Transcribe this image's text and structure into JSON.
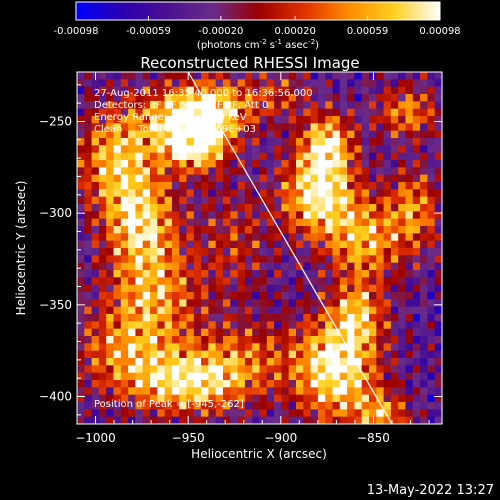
{
  "chart_data": {
    "type": "heatmap",
    "title": "Reconstructed RHESSI Image",
    "xlabel": "Heliocentric X (arcsec)",
    "ylabel": "Heliocentric Y (arcsec)",
    "xlim": [
      -1010,
      -813
    ],
    "ylim": [
      -415,
      -223
    ],
    "x_ticks": [
      -1000,
      -950,
      -900,
      -850
    ],
    "y_ticks": [
      -400,
      -350,
      -300,
      -250
    ],
    "colorbar": {
      "range": [
        -0.00098,
        0.00098
      ],
      "ticks": [
        -0.00098,
        -0.00059,
        -0.0002,
        0.0002,
        0.00059,
        0.00098
      ],
      "tick_labels": [
        "-0.00098",
        "-0.00059",
        "-0.00020",
        "0.00020",
        "0.00059",
        "0.00098"
      ],
      "units_main": "(photons cm",
      "units_exp1": "-2",
      "units_mid": " s",
      "units_exp2": "-1",
      "units_end": " asec",
      "units_exp3": "-2",
      "units_close": ")",
      "colors": [
        "#0000ff",
        "#2a00b0",
        "#4a1090",
        "#6a2c8a",
        "#9a0000",
        "#e03000",
        "#ff8c00",
        "#ffd020",
        "#ffffff"
      ]
    },
    "limb_line": {
      "x": [
        -950,
        -840
      ],
      "y": [
        -223,
        -415
      ]
    },
    "blobs": [
      {
        "x": -950,
        "y": -250,
        "sx": 18,
        "sy": 14,
        "amp": 1.0
      },
      {
        "x": -990,
        "y": -270,
        "sx": 14,
        "sy": 20,
        "amp": 0.7
      },
      {
        "x": -975,
        "y": -305,
        "sx": 14,
        "sy": 20,
        "amp": 0.8
      },
      {
        "x": -945,
        "y": -262,
        "sx": 10,
        "sy": 10,
        "amp": 0.7
      },
      {
        "x": -968,
        "y": -345,
        "sx": 18,
        "sy": 18,
        "amp": 0.6
      },
      {
        "x": -985,
        "y": -375,
        "sx": 20,
        "sy": 16,
        "amp": 0.55
      },
      {
        "x": -950,
        "y": -393,
        "sx": 22,
        "sy": 12,
        "amp": 0.85
      },
      {
        "x": -920,
        "y": -378,
        "sx": 20,
        "sy": 14,
        "amp": 0.45
      },
      {
        "x": -880,
        "y": -290,
        "sx": 14,
        "sy": 16,
        "amp": 0.95
      },
      {
        "x": -875,
        "y": -262,
        "sx": 10,
        "sy": 12,
        "amp": 0.8
      },
      {
        "x": -855,
        "y": -315,
        "sx": 14,
        "sy": 16,
        "amp": 0.7
      },
      {
        "x": -828,
        "y": -298,
        "sx": 10,
        "sy": 16,
        "amp": 0.6
      },
      {
        "x": -832,
        "y": -245,
        "sx": 12,
        "sy": 10,
        "amp": 0.6
      },
      {
        "x": -870,
        "y": -385,
        "sx": 16,
        "sy": 20,
        "amp": 1.0
      },
      {
        "x": -858,
        "y": -355,
        "sx": 10,
        "sy": 12,
        "amp": 0.6
      },
      {
        "x": -845,
        "y": -410,
        "sx": 10,
        "sy": 8,
        "amp": 0.6
      },
      {
        "x": -930,
        "y": -240,
        "sx": 14,
        "sy": 10,
        "amp": 0.4
      },
      {
        "x": -925,
        "y": -315,
        "sx": 14,
        "sy": 22,
        "amp": 0.35
      },
      {
        "x": -900,
        "y": -235,
        "sx": 12,
        "sy": 10,
        "amp": 0.35
      }
    ],
    "annotations": {
      "time": "27-Aug-2011 16:35:40.000 to 16:36:56.000",
      "detectors": "Detectors: 3F 4F 5F 6F 7F 8F, Att 0",
      "energy": "Energy Range: 12.0 - 25.0 keV",
      "clean": "Clean     Total Counts: 2.69E+03",
      "peak": "Position of Peak = [-945,-262]"
    },
    "datestamp": "13-May-2022 13:27"
  }
}
